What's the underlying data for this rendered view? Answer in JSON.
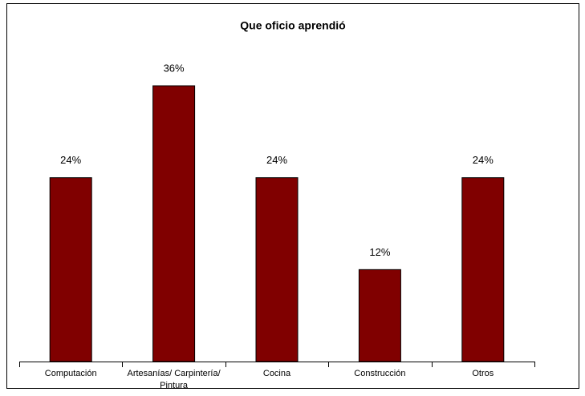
{
  "chart_data": {
    "type": "bar",
    "title": "Que oficio aprendió",
    "categories": [
      "Computación",
      "Artesanías/ Carpintería/ Pintura",
      "Cocina",
      "Construcción",
      "Otros"
    ],
    "values": [
      24,
      36,
      24,
      12,
      24
    ],
    "value_labels": [
      "24%",
      "36%",
      "24%",
      "12%",
      "24%"
    ],
    "color": "#800000"
  }
}
